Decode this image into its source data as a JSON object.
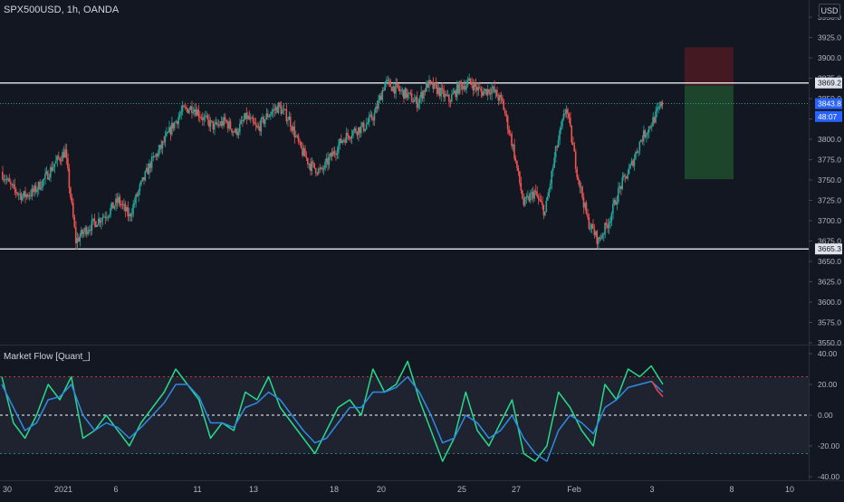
{
  "symbol_title": "SPX500USD, 1h, OANDA",
  "indicator_title": "Market Flow [Quant_]",
  "currency_label": "USD",
  "colors": {
    "background": "#131722",
    "up": "#26a69a",
    "down": "#ef5350",
    "flow_fast": "#27d98a",
    "flow_slow": "#2f8ae3",
    "flow_down": "#f04545",
    "target_zone": "#1e4a2e",
    "stop_zone": "#4a1a22",
    "level_line": "#ffffff",
    "price_tag": "#2962ff"
  },
  "price_axis": {
    "min": 3550,
    "max": 3950,
    "ticks": [
      "3950.0",
      "3925.0",
      "3900.0",
      "3875.0",
      "3850.0",
      "3825.0",
      "3800.0",
      "3775.0",
      "3750.0",
      "3725.0",
      "3700.0",
      "3675.0",
      "3650.0",
      "3625.0",
      "3600.0",
      "3575.0",
      "3550.0"
    ],
    "tags": [
      {
        "label": "3869.2",
        "value": 3869.2,
        "style": "light"
      },
      {
        "label": "3843.8",
        "value": 3843.8,
        "style": "blue"
      },
      {
        "label": "48:07",
        "value": 3828.0,
        "style": "blue"
      },
      {
        "label": "3665.3",
        "value": 3665.3,
        "style": "light"
      }
    ]
  },
  "indicator_axis": {
    "min": -40,
    "max": 40,
    "ticks": [
      "40.00",
      "20.00",
      "0.00",
      "-20.00",
      "-40.00"
    ],
    "upper_band": 25,
    "lower_band": -25
  },
  "time_axis": {
    "labels": [
      "30",
      "2021",
      "6",
      "11",
      "13",
      "18",
      "20",
      "25",
      "27",
      "Feb",
      "3",
      "8",
      "10"
    ]
  },
  "levels": [
    3869.2,
    3665.3
  ],
  "last_price": 3843.8,
  "position": {
    "entry": 3866,
    "stop": 3913,
    "target": 3751
  },
  "chart_data": {
    "type": "candlestick",
    "title": "SPX500USD, 1h, OANDA",
    "ylim": [
      3550,
      3950
    ],
    "x_labels": [
      "30",
      "2021",
      "6",
      "11",
      "13",
      "18",
      "20",
      "25",
      "27",
      "Feb",
      "3",
      "8",
      "10"
    ],
    "price_path": [
      [
        "30",
        3760
      ],
      [
        "30",
        3740
      ],
      [
        "30",
        3730
      ],
      [
        "30",
        3735
      ],
      [
        "2021",
        3750
      ],
      [
        "2021",
        3770
      ],
      [
        "2021",
        3785
      ],
      [
        "2021",
        3675
      ],
      [
        "2021",
        3690
      ],
      [
        "2021",
        3700
      ],
      [
        "6",
        3710
      ],
      [
        "6",
        3725
      ],
      [
        "6",
        3705
      ],
      [
        "6",
        3740
      ],
      [
        "6",
        3770
      ],
      [
        "6",
        3790
      ],
      [
        "6",
        3815
      ],
      [
        "6",
        3835
      ],
      [
        "11",
        3840
      ],
      [
        "11",
        3825
      ],
      [
        "11",
        3815
      ],
      [
        "11",
        3822
      ],
      [
        "13",
        3808
      ],
      [
        "13",
        3828
      ],
      [
        "13",
        3812
      ],
      [
        "13",
        3830
      ],
      [
        "13",
        3840
      ],
      [
        "13",
        3825
      ],
      [
        "18",
        3790
      ],
      [
        "18",
        3768
      ],
      [
        "18",
        3760
      ],
      [
        "18",
        3780
      ],
      [
        "18",
        3800
      ],
      [
        "18",
        3810
      ],
      [
        "20",
        3815
      ],
      [
        "20",
        3830
      ],
      [
        "20",
        3870
      ],
      [
        "20",
        3862
      ],
      [
        "20",
        3855
      ],
      [
        "25",
        3845
      ],
      [
        "25",
        3868
      ],
      [
        "25",
        3860
      ],
      [
        "25",
        3848
      ],
      [
        "25",
        3865
      ],
      [
        "27",
        3870
      ],
      [
        "27",
        3858
      ],
      [
        "27",
        3862
      ],
      [
        "27",
        3845
      ],
      [
        "27",
        3790
      ],
      [
        "27",
        3720
      ],
      [
        "27",
        3735
      ],
      [
        "Feb",
        3710
      ],
      [
        "Feb",
        3785
      ],
      [
        "Feb",
        3840
      ],
      [
        "Feb",
        3760
      ],
      [
        "Feb",
        3700
      ],
      [
        "Feb",
        3675
      ],
      [
        "Feb",
        3700
      ],
      [
        "Feb",
        3740
      ],
      [
        "Feb",
        3765
      ],
      [
        "3",
        3800
      ],
      [
        "3",
        3820
      ],
      [
        "3",
        3843.8
      ]
    ],
    "series": [
      {
        "name": "Market Flow fast",
        "values": [
          25,
          -5,
          -15,
          0,
          20,
          10,
          25,
          -15,
          -10,
          0,
          -10,
          -20,
          -5,
          5,
          15,
          30,
          20,
          10,
          -15,
          -5,
          -10,
          15,
          10,
          25,
          5,
          -5,
          -15,
          -25,
          -10,
          5,
          10,
          0,
          30,
          15,
          20,
          35,
          10,
          -10,
          -30,
          -15,
          15,
          -10,
          -20,
          -5,
          10,
          -25,
          -30,
          -20,
          15,
          5,
          -10,
          -20,
          20,
          10,
          30,
          25,
          32,
          20
        ]
      },
      {
        "name": "Market Flow slow",
        "values": [
          20,
          5,
          -10,
          -5,
          10,
          12,
          20,
          0,
          -10,
          -5,
          -8,
          -15,
          -8,
          0,
          8,
          20,
          20,
          12,
          -5,
          -5,
          -8,
          5,
          8,
          15,
          10,
          0,
          -10,
          -18,
          -15,
          -5,
          5,
          5,
          15,
          15,
          18,
          25,
          15,
          0,
          -18,
          -15,
          0,
          -5,
          -15,
          -10,
          0,
          -15,
          -25,
          -30,
          -10,
          0,
          -5,
          -12,
          5,
          10,
          18,
          20,
          22,
          15
        ]
      }
    ]
  }
}
